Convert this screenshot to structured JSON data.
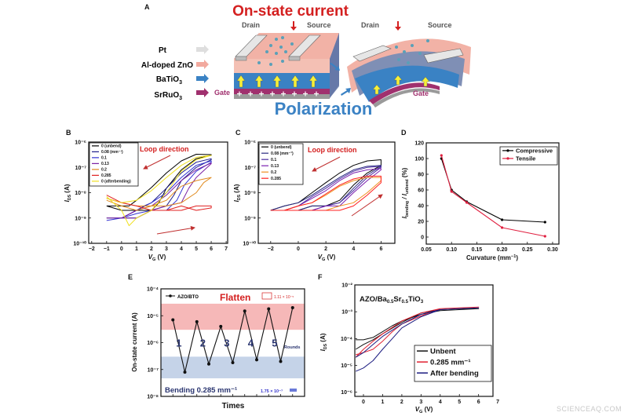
{
  "panel_a": {
    "label": "A",
    "title": "On-state current",
    "bottom_label": "Polarization",
    "layers": [
      {
        "name": "Pt",
        "color": "#d9d9d9"
      },
      {
        "name": "Al-doped ZnO",
        "color": "#f0a49a"
      },
      {
        "name": "BaTiO3",
        "color": "#3a82c4"
      },
      {
        "name": "SrRuO3",
        "color": "#a0306e"
      }
    ],
    "layer_labels": {
      "pt": "Pt",
      "azo": "Al-doped ZnO",
      "bto_main": "BaTiO",
      "bto_sub": "3",
      "sro_main": "SrRuO",
      "sro_sub": "3"
    },
    "gate": "Gate",
    "drain": "Drain",
    "source": "Source",
    "colors": {
      "title": "#d42020",
      "polarization": "#3b82c4",
      "gate": "#a0306e"
    }
  },
  "chart_data": [
    {
      "panel": "B",
      "type": "line",
      "yscale": "log",
      "xlabel": {
        "main": "V",
        "sub": "G",
        "unit": " (V)"
      },
      "ylabel": {
        "main": "I",
        "sub": "DS",
        "unit": " (A)"
      },
      "xlim": [
        -2.2,
        7.1
      ],
      "ylim": [
        1e-10,
        1e-06
      ],
      "xticks": [
        -2,
        -1,
        0,
        1,
        2,
        3,
        4,
        5,
        6,
        7
      ],
      "yticks": [
        1e-10,
        1e-09,
        1e-08,
        1e-07,
        1e-06
      ],
      "annotation": "Loop direction",
      "legend_placement": "top-left",
      "series": [
        {
          "name": "0 (unbend)",
          "color": "#000000",
          "x": [
            -1,
            0,
            1,
            2,
            2.5,
            3,
            4,
            5,
            6,
            6,
            5,
            4,
            3,
            2,
            1,
            0.5,
            0,
            -1
          ],
          "y": [
            3e-09,
            2e-09,
            2e-09,
            2e-09,
            4e-09,
            1.5e-08,
            8e-08,
            2.2e-07,
            3e-07,
            3.2e-07,
            3.3e-07,
            1.8e-07,
            6e-08,
            1.6e-08,
            5e-09,
            3e-09,
            3e-09,
            3e-09
          ]
        },
        {
          "name": "0.08 (mm⁻¹)",
          "color": "#1c1c8a",
          "x": [
            -1,
            0,
            1,
            2,
            3,
            3.5,
            4,
            5,
            6,
            6,
            5,
            4,
            3,
            2,
            1.5,
            1,
            0,
            -1
          ],
          "y": [
            1e-09,
            1e-09,
            1e-09,
            2e-09,
            3e-09,
            8e-09,
            3e-08,
            1e-07,
            2e-07,
            2.2e-07,
            1.6e-07,
            6e-08,
            1.5e-08,
            4e-09,
            3e-09,
            2e-09,
            1e-09,
            1e-09
          ]
        },
        {
          "name": "0.1",
          "color": "#3232d2",
          "x": [
            -1,
            0,
            1,
            2,
            3,
            3.7,
            4.2,
            5,
            6,
            6,
            5,
            4,
            3,
            2,
            1,
            0,
            -1
          ],
          "y": [
            8e-10,
            1e-09,
            1.5e-09,
            2e-09,
            2e-09,
            5e-09,
            2e-08,
            7e-08,
            1.6e-07,
            1.8e-07,
            1.2e-07,
            4e-08,
            1e-08,
            4e-09,
            2e-09,
            1e-09,
            8e-10
          ]
        },
        {
          "name": "0.13",
          "color": "#7a1fa2",
          "x": [
            -1,
            0,
            1,
            2,
            3,
            4,
            4.5,
            5,
            6,
            6,
            5,
            4,
            3,
            2,
            1,
            0,
            -1
          ],
          "y": [
            1e-09,
            1e-09,
            1e-09,
            2e-09,
            3e-09,
            4e-09,
            1.5e-08,
            4e-08,
            1.4e-07,
            1.5e-07,
            8e-08,
            3e-08,
            8e-09,
            3e-09,
            2e-09,
            1e-09,
            1e-09
          ]
        },
        {
          "name": "0.2",
          "color": "#e08a1e",
          "x": [
            -1,
            0,
            1,
            2,
            3,
            4,
            5,
            5.5,
            6,
            6,
            5,
            4,
            3.5,
            3,
            2,
            1,
            0,
            -1
          ],
          "y": [
            5e-09,
            3e-09,
            2e-09,
            3e-09,
            3e-09,
            4e-09,
            1e-08,
            2.5e-08,
            4e-08,
            4e-08,
            3e-08,
            1.8e-08,
            1e-08,
            5e-09,
            3e-09,
            3e-09,
            4e-09,
            6e-09
          ]
        },
        {
          "name": "0.285",
          "color": "#e02020",
          "x": [
            -1,
            0,
            1,
            2,
            3,
            4,
            5,
            6,
            6,
            5,
            4,
            3,
            2,
            1,
            0,
            -1
          ],
          "y": [
            8e-09,
            4e-09,
            3e-09,
            2e-09,
            2e-09,
            2e-09,
            3e-09,
            3e-09,
            2.5e-09,
            2e-09,
            3e-09,
            2e-09,
            2e-09,
            3e-09,
            4e-09,
            6e-09
          ]
        },
        {
          "name": "0 (afterbending)",
          "color": "#f0e020",
          "x": [
            -1,
            0,
            0.5,
            1,
            2,
            3,
            4,
            5,
            6,
            6,
            5,
            4,
            3,
            2,
            1,
            0,
            -1
          ],
          "y": [
            7e-09,
            2e-09,
            5e-10,
            1e-09,
            2e-09,
            1e-08,
            7e-08,
            2e-07,
            3e-07,
            3e-07,
            2.5e-07,
            1.2e-07,
            4e-08,
            1.2e-08,
            5e-09,
            4e-09,
            6e-09
          ]
        }
      ]
    },
    {
      "panel": "C",
      "type": "line",
      "yscale": "log",
      "xlabel": {
        "main": "V",
        "sub": "G",
        "unit": " (V)"
      },
      "ylabel": {
        "main": "I",
        "sub": "DS",
        "unit": " (A)"
      },
      "xlim": [
        -2.9,
        7
      ],
      "ylim": [
        1e-10,
        1e-06
      ],
      "xticks": [
        -2,
        0,
        2,
        4,
        6
      ],
      "yticks": [
        1e-10,
        1e-09,
        1e-08,
        1e-07,
        1e-06
      ],
      "annotation": "Loop direction",
      "legend_placement": "top-left",
      "series": [
        {
          "name": "0 (unbend)",
          "color": "#000000",
          "x": [
            -2,
            -1,
            0,
            1,
            2,
            3,
            4,
            5,
            6,
            6,
            5,
            4,
            3,
            2,
            1,
            0,
            -1,
            -2
          ],
          "y": [
            2e-09,
            2e-09,
            2e-09,
            3e-09,
            3e-09,
            5e-09,
            2e-08,
            6e-08,
            1.2e-07,
            2e-07,
            1.8e-07,
            1.2e-07,
            6e-08,
            2.5e-08,
            1e-08,
            4e-09,
            3e-09,
            2e-09
          ]
        },
        {
          "name": "0.08 (mm⁻¹)",
          "color": "#2a2a80",
          "x": [
            -2,
            -1,
            0,
            1,
            2,
            3,
            4,
            5,
            6,
            6,
            5,
            4,
            3,
            2,
            1,
            0,
            -1,
            -2
          ],
          "y": [
            2e-09,
            2e-09,
            2e-09,
            3e-09,
            3e-09,
            4e-09,
            1.5e-08,
            5e-08,
            1.1e-07,
            1.2e-07,
            1.1e-07,
            8e-08,
            4e-08,
            1.8e-08,
            8e-09,
            4e-09,
            3e-09,
            2e-09
          ]
        },
        {
          "name": "0.1",
          "color": "#4a2aa0",
          "x": [
            -2,
            -1,
            0,
            1,
            2,
            3,
            4,
            5,
            6,
            6,
            5,
            4,
            3,
            2,
            1,
            0,
            -1,
            -2
          ],
          "y": [
            2e-09,
            2e-09,
            2e-09,
            2e-09,
            3e-09,
            4e-09,
            1.2e-08,
            4e-08,
            1e-07,
            1.1e-07,
            1e-07,
            7e-08,
            3.5e-08,
            1.5e-08,
            7e-09,
            3e-09,
            2e-09,
            2e-09
          ]
        },
        {
          "name": "0.13",
          "color": "#7a20b0",
          "x": [
            -2,
            -1,
            0,
            1,
            2,
            3,
            4,
            5,
            6,
            6,
            5,
            4,
            3,
            2,
            1,
            0,
            -1,
            -2
          ],
          "y": [
            2e-09,
            2e-09,
            2e-09,
            2e-09,
            3e-09,
            3e-09,
            1e-08,
            3e-08,
            8e-08,
            9e-08,
            8e-08,
            6e-08,
            3e-08,
            1.2e-08,
            6e-09,
            3e-09,
            2e-09,
            2e-09
          ]
        },
        {
          "name": "0.2",
          "color": "#f09020",
          "x": [
            -2,
            -1,
            0,
            1,
            2,
            3,
            4,
            5,
            6,
            6,
            5,
            4,
            3,
            2,
            1,
            0,
            -1,
            -2
          ],
          "y": [
            2e-09,
            2e-09,
            2e-09,
            2e-09,
            2e-09,
            3e-09,
            4e-09,
            1e-08,
            3e-08,
            4e-08,
            4e-08,
            3e-08,
            1.8e-08,
            8e-09,
            4e-09,
            3e-09,
            2e-09,
            2e-09
          ]
        },
        {
          "name": "0.285",
          "color": "#ff2020",
          "x": [
            -2,
            -1,
            0,
            1,
            2,
            3,
            4,
            5,
            6,
            6,
            5,
            4,
            3,
            2,
            1,
            0,
            -1,
            -2
          ],
          "y": [
            2e-09,
            2e-09,
            2e-09,
            2e-09,
            2e-09,
            2e-09,
            3e-09,
            8e-09,
            2.5e-08,
            4.5e-08,
            4.5e-08,
            3.5e-08,
            2e-08,
            9e-09,
            4e-09,
            3e-09,
            2e-09,
            2e-09
          ]
        }
      ]
    },
    {
      "panel": "D",
      "type": "line",
      "yscale": "linear",
      "xlabel": {
        "main": "Curvature (mm",
        "sup": "−1",
        "unit": ")"
      },
      "ylabel": {
        "main": "I",
        "sub": "bending",
        "mid": " / I",
        "sub2": "unbend",
        "unit": " (%)"
      },
      "xlim": [
        0.05,
        0.3125
      ],
      "ylim": [
        -9,
        120
      ],
      "xticks": [
        0.05,
        0.1,
        0.15,
        0.2,
        0.25,
        0.3
      ],
      "yticks": [
        0,
        20,
        40,
        60,
        80,
        100,
        120
      ],
      "legend_placement": "top-right",
      "series": [
        {
          "name": "Compressive",
          "color": "#000000",
          "x": [
            0.08,
            0.1,
            0.13,
            0.2,
            0.285
          ],
          "y": [
            100,
            60,
            45,
            22,
            19
          ]
        },
        {
          "name": "Tensile",
          "color": "#e02040",
          "x": [
            0.08,
            0.1,
            0.13,
            0.2,
            0.285
          ],
          "y": [
            104,
            58,
            44,
            12,
            1
          ]
        }
      ]
    },
    {
      "panel": "E",
      "type": "line",
      "yscale": "log",
      "xlabel": {
        "main": "Times"
      },
      "ylabel": {
        "main": "On-state current (A)"
      },
      "xlim": [
        0,
        12
      ],
      "ylim": [
        1e-08,
        0.0001
      ],
      "xticks": [
        1,
        2,
        3,
        4,
        5,
        6,
        7,
        8,
        9,
        10,
        11
      ],
      "yticks": [
        1e-08,
        1e-07,
        1e-06,
        1e-05,
        0.0001
      ],
      "legend_placement": "top-left",
      "bands": [
        {
          "label": "Flatten",
          "from": 3e-06,
          "to": 2.8e-05,
          "color": "#f6b8b8",
          "value": "1.11 × 10⁻⁵"
        },
        {
          "label": "Bending 0.285 mm⁻¹",
          "from": 4.7e-08,
          "to": 3e-07,
          "color": "#c5d3e8",
          "value": "1.75 × 10⁻⁷"
        }
      ],
      "round_labels": [
        "1",
        "2",
        "3",
        "4",
        "5"
      ],
      "rounds_label": "Rounds",
      "series": [
        {
          "name": "AZO/BTO",
          "color": "#111111",
          "x": [
            1,
            2,
            3,
            4,
            5,
            6,
            7,
            8,
            9,
            10,
            11
          ],
          "y": [
            7e-06,
            8e-08,
            6e-06,
            1.6e-07,
            4e-06,
            1.8e-07,
            1.5e-05,
            2.3e-07,
            1.8e-05,
            2e-07,
            2e-05
          ]
        }
      ]
    },
    {
      "panel": "F",
      "type": "line",
      "yscale": "log",
      "title": "AZO/Ba0.5Sr0.5TiO3",
      "title_parts": [
        "AZO/Ba",
        "0.5",
        "Sr",
        "0.5",
        "TiO",
        "3"
      ],
      "xlabel": {
        "main": "V",
        "sub": "G",
        "unit": " (V)"
      },
      "ylabel": {
        "main": "I",
        "sub": "DS",
        "unit": " (A)"
      },
      "xlim": [
        -0.45,
        6.75
      ],
      "ylim": [
        7e-07,
        0.01
      ],
      "xticks": [
        0,
        1,
        2,
        3,
        4,
        5,
        6,
        7
      ],
      "yticks": [
        1e-06,
        1e-05,
        0.0001,
        0.001,
        0.01
      ],
      "legend_placement": "bottom-right",
      "series": [
        {
          "name": "Unbent",
          "color": "#111111",
          "x": [
            -0.4,
            0,
            0.5,
            1,
            1.5,
            2,
            3,
            4,
            5,
            6,
            6,
            5,
            4,
            3,
            2,
            1,
            0.5,
            0,
            -0.4
          ],
          "y": [
            9e-05,
            9e-05,
            0.00011,
            0.00018,
            0.0003,
            0.00045,
            0.0008,
            0.0011,
            0.0012,
            0.0013,
            0.0013,
            0.0013,
            0.0012,
            0.0009,
            0.0004,
            0.00015,
            9e-05,
            6e-05,
            4e-05
          ]
        },
        {
          "name": "0.285 mm⁻¹",
          "color": "#e02030",
          "x": [
            -0.4,
            0,
            0.5,
            1,
            1.5,
            2,
            3,
            4,
            5,
            6,
            6,
            5,
            4,
            3,
            2,
            1,
            0.5,
            0,
            -0.4
          ],
          "y": [
            2.5e-05,
            3e-05,
            4e-05,
            8e-05,
            0.00018,
            0.00035,
            0.0007,
            0.0013,
            0.0014,
            0.0015,
            0.0015,
            0.0014,
            0.0013,
            0.0009,
            0.00045,
            0.00015,
            8e-05,
            4e-05,
            2e-05
          ]
        },
        {
          "name": "After bending",
          "color": "#1c1c80",
          "x": [
            -0.4,
            0,
            0.5,
            1,
            1.5,
            2,
            3,
            4,
            5,
            6,
            6,
            5,
            4,
            3,
            2,
            1,
            0.5,
            0,
            -0.4
          ],
          "y": [
            6e-06,
            8e-06,
            1.5e-05,
            4e-05,
            0.0001,
            0.00025,
            0.00065,
            0.0012,
            0.0013,
            0.0014,
            0.0014,
            0.0013,
            0.0012,
            0.0008,
            0.00035,
            0.00012,
            6e-05,
            3e-05,
            2e-05
          ]
        }
      ]
    }
  ],
  "watermark": "SCIENCEAQ.COM"
}
